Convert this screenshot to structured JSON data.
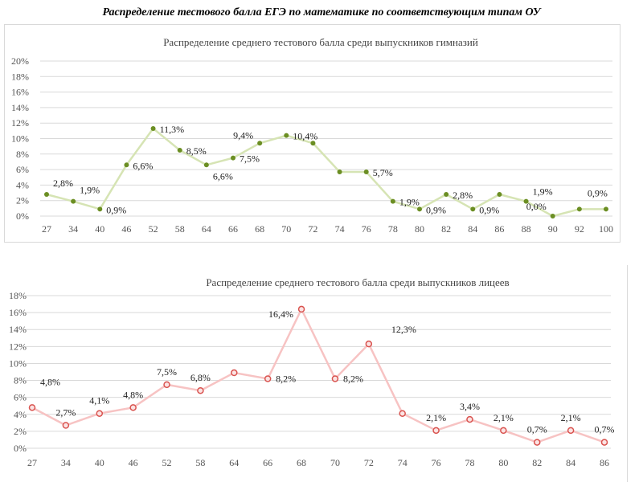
{
  "title": "Распределение тестового балла ЕГЭ по математике по соответствующим типам ОУ",
  "chart_data": [
    {
      "type": "line",
      "title": "Распределение среднего тестового балла среди выпускников гимназий",
      "categories": [
        "27",
        "34",
        "40",
        "46",
        "52",
        "58",
        "64",
        "66",
        "68",
        "70",
        "72",
        "74",
        "76",
        "78",
        "80",
        "82",
        "84",
        "86",
        "88",
        "90",
        "92",
        "100"
      ],
      "values": [
        2.8,
        1.9,
        0.9,
        6.6,
        11.3,
        8.5,
        6.6,
        7.5,
        9.4,
        10.4,
        9.4,
        5.7,
        5.7,
        1.9,
        0.9,
        2.8,
        0.9,
        2.8,
        1.9,
        0.0,
        0.9,
        0.9
      ],
      "data_labels": [
        "2,8%",
        "1,9%",
        "0,9%",
        "6,6%",
        "11,3%",
        "8,5%",
        "6,6%",
        "7,5%",
        "9,4%",
        "10,4%",
        null,
        null,
        "5,7%",
        "1,9%",
        "0,9%",
        "2,8%",
        "0,9%",
        null,
        "1,9%",
        "0,0%",
        "0,9%",
        null
      ],
      "yticks": [
        "0%",
        "2%",
        "4%",
        "6%",
        "8%",
        "10%",
        "12%",
        "14%",
        "16%",
        "18%",
        "20%"
      ],
      "ylim": [
        0,
        20
      ],
      "grid": true,
      "color": "#d6e4b4",
      "marker_color": "#6b8e23"
    },
    {
      "type": "line",
      "title": "Распределение среднего тестового балла среди выпускников лицеев",
      "categories": [
        "27",
        "34",
        "40",
        "46",
        "52",
        "58",
        "64",
        "66",
        "68",
        "70",
        "72",
        "74",
        "76",
        "78",
        "80",
        "82",
        "84",
        "86"
      ],
      "values": [
        4.8,
        2.7,
        4.1,
        4.8,
        7.5,
        6.8,
        8.9,
        8.2,
        16.4,
        8.2,
        12.3,
        4.1,
        2.1,
        3.4,
        2.1,
        0.7,
        2.1,
        0.7
      ],
      "data_labels": [
        "4,8%",
        "2,7%",
        "4,1%",
        "4,8%",
        "7,5%",
        "6,8%",
        null,
        "8,2%",
        "16,4%",
        "8,2%",
        "12,3%",
        null,
        "2,1%",
        "3,4%",
        "2,1%",
        "0,7%",
        "2,1%",
        "0,7%"
      ],
      "yticks": [
        "0%",
        "2%",
        "4%",
        "6%",
        "8%",
        "10%",
        "12%",
        "14%",
        "16%",
        "18%"
      ],
      "ylim": [
        0,
        18
      ],
      "grid": true,
      "color": "#f7c3c3",
      "marker_color": "#d9534f"
    }
  ]
}
